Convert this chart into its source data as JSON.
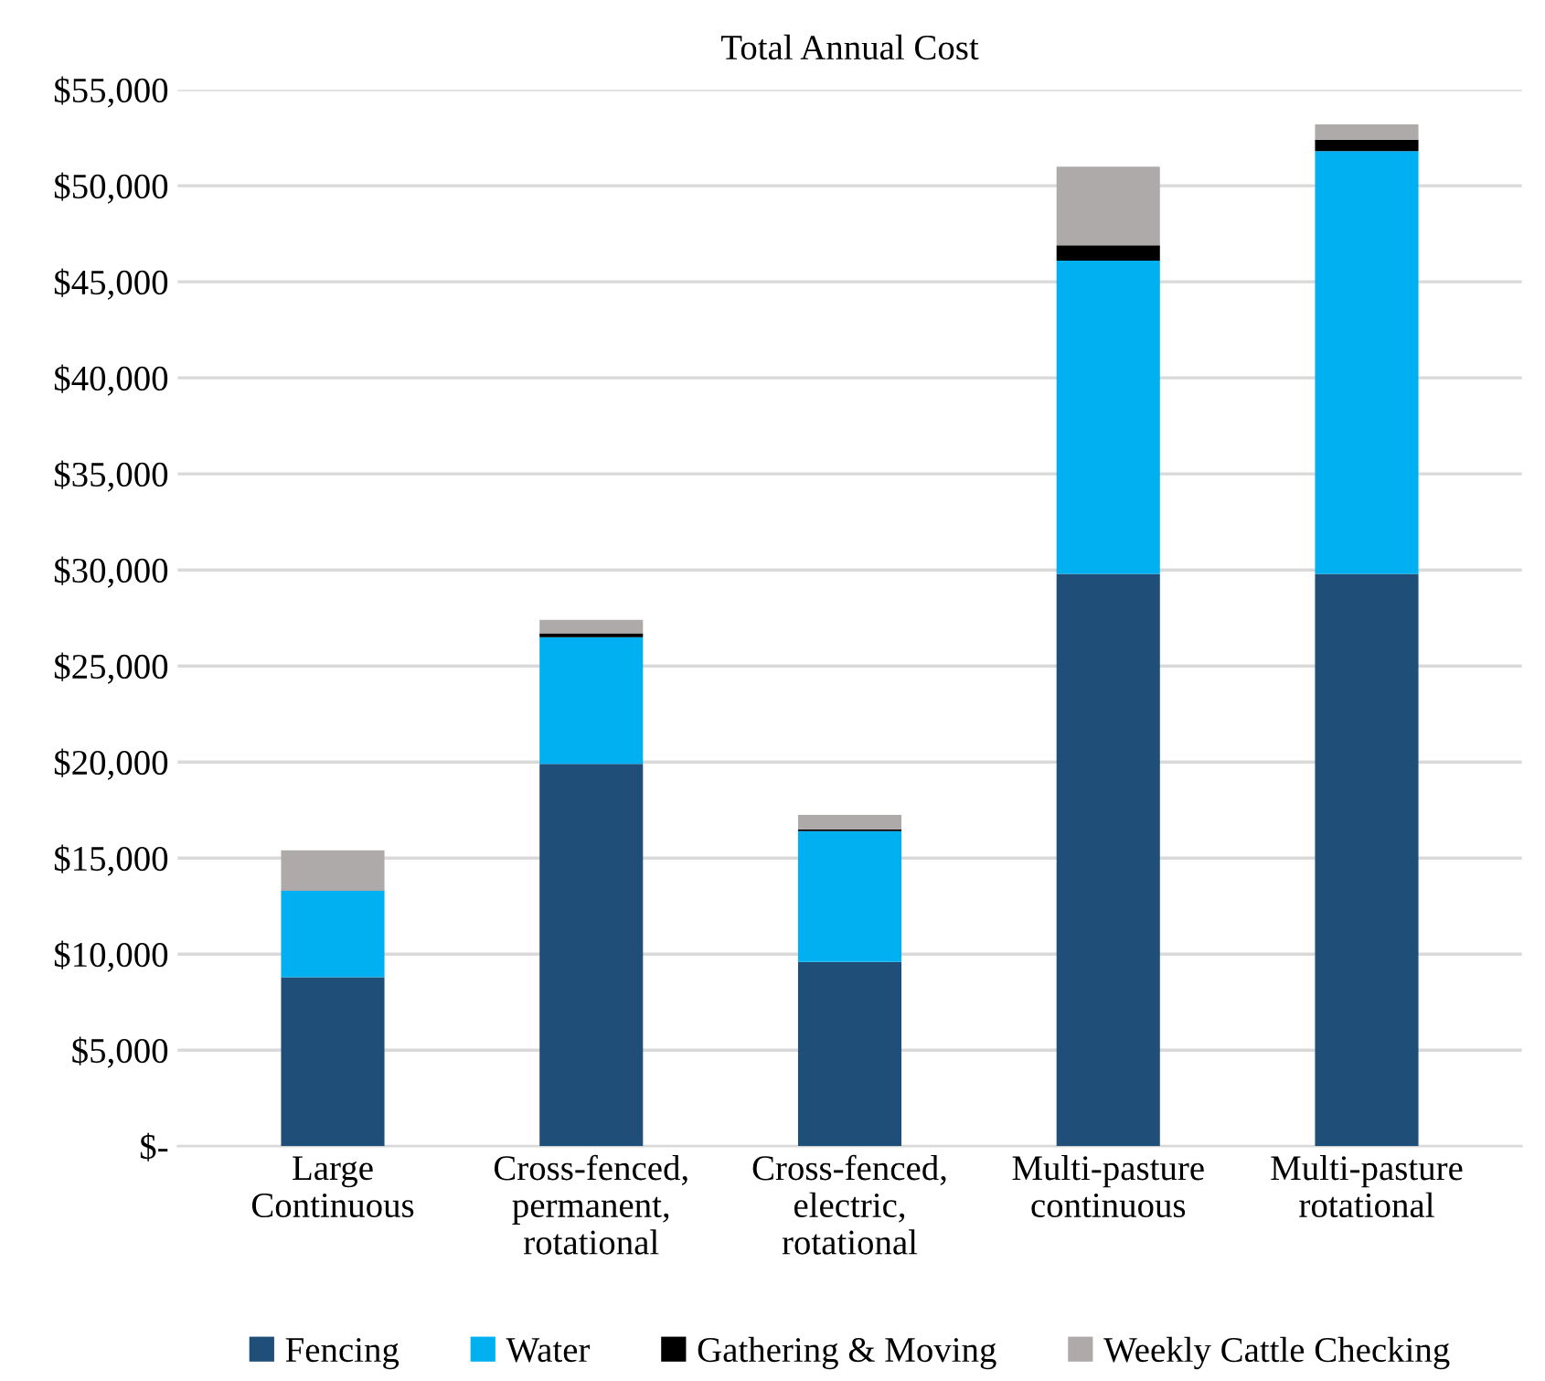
{
  "chart_data": {
    "type": "bar",
    "title": "Total Annual Cost",
    "stacked": true,
    "categories": [
      "Large\nContinuous",
      "Cross-fenced,\npermanent,\nrotational",
      "Cross-fenced,\nelectric,\nrotational",
      "Multi-pasture\ncontinuous",
      "Multi-pasture\nrotational"
    ],
    "series": [
      {
        "name": "Fencing",
        "color": "#1f4e79",
        "values": [
          8800,
          19900,
          9600,
          29800,
          29800
        ]
      },
      {
        "name": "Water",
        "color": "#00b0f0",
        "values": [
          4500,
          6600,
          6800,
          16300,
          22000
        ]
      },
      {
        "name": "Gathering & Moving",
        "color": "#000000",
        "values": [
          0,
          200,
          100,
          800,
          600
        ]
      },
      {
        "name": "Weekly Cattle Checking",
        "color": "#aeaaaa",
        "values": [
          2100,
          700,
          750,
          4100,
          800
        ]
      }
    ],
    "ylim": [
      0,
      55000
    ],
    "yticks": [
      {
        "value": 0,
        "label": "$-"
      },
      {
        "value": 5000,
        "label": "$5,000"
      },
      {
        "value": 10000,
        "label": "$10,000"
      },
      {
        "value": 15000,
        "label": "$15,000"
      },
      {
        "value": 20000,
        "label": "$20,000"
      },
      {
        "value": 25000,
        "label": "$25,000"
      },
      {
        "value": 30000,
        "label": "$30,000"
      },
      {
        "value": 35000,
        "label": "$35,000"
      },
      {
        "value": 40000,
        "label": "$40,000"
      },
      {
        "value": 45000,
        "label": "$45,000"
      },
      {
        "value": 50000,
        "label": "$50,000"
      },
      {
        "value": 55000,
        "label": "$55,000"
      }
    ],
    "grid": "y",
    "legend": "bottom"
  }
}
